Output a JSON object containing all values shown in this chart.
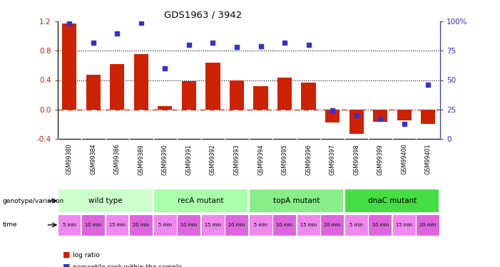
{
  "title": "GDS1963 / 3942",
  "samples": [
    "GSM99380",
    "GSM99384",
    "GSM99386",
    "GSM99389",
    "GSM99390",
    "GSM99391",
    "GSM99392",
    "GSM99393",
    "GSM99394",
    "GSM99395",
    "GSM99396",
    "GSM99397",
    "GSM99398",
    "GSM99399",
    "GSM99400",
    "GSM99401"
  ],
  "log_ratio": [
    1.17,
    0.47,
    0.62,
    0.75,
    0.05,
    0.39,
    0.64,
    0.4,
    0.32,
    0.43,
    0.37,
    -0.18,
    -0.33,
    -0.17,
    -0.15,
    -0.2
  ],
  "pct_rank": [
    98,
    82,
    90,
    99,
    60,
    80,
    82,
    78,
    79,
    82,
    80,
    24,
    20,
    17,
    13,
    46
  ],
  "bar_color": "#cc2200",
  "dot_color": "#3333cc",
  "ylim_left": [
    -0.4,
    1.2
  ],
  "ylim_right": [
    0,
    100
  ],
  "right_ticks": [
    0,
    25,
    50,
    75,
    100
  ],
  "right_tick_labels": [
    "0",
    "25",
    "50",
    "75",
    "100%"
  ],
  "left_ticks": [
    -0.4,
    0.0,
    0.4,
    0.8,
    1.2
  ],
  "hlines": [
    0.8,
    0.4
  ],
  "hline_zero_color": "#cc2200",
  "genotype_groups": [
    {
      "label": "wild type",
      "start": 0,
      "end": 4,
      "color": "#ccffcc"
    },
    {
      "label": "recA mutant",
      "start": 4,
      "end": 8,
      "color": "#aaffaa"
    },
    {
      "label": "topA mutant",
      "start": 8,
      "end": 12,
      "color": "#88ee88"
    },
    {
      "label": "dnaC mutant",
      "start": 12,
      "end": 16,
      "color": "#44dd44"
    }
  ],
  "time_labels": [
    "5 min",
    "10 min",
    "15 min",
    "20 min",
    "5 min",
    "10 min",
    "15 min",
    "20 min",
    "5 min",
    "10 min",
    "15 min",
    "20 min",
    "5 min",
    "10 min",
    "15 min",
    "20 min"
  ],
  "time_colors": [
    "#ee88ee",
    "#dd66dd",
    "#ee88ee",
    "#dd66dd",
    "#ee88ee",
    "#dd66dd",
    "#ee88ee",
    "#dd66dd",
    "#ee88ee",
    "#dd66dd",
    "#ee88ee",
    "#dd66dd",
    "#ee88ee",
    "#dd66dd",
    "#ee88ee",
    "#dd66dd"
  ],
  "sample_bg_color": "#cccccc",
  "genotype_label": "genotype/variation",
  "time_label": "time",
  "legend_log": "log ratio",
  "legend_pct": "percentile rank within the sample",
  "background_color": "#ffffff",
  "axis_label_color": "#cc2200",
  "right_axis_color": "#3333cc"
}
